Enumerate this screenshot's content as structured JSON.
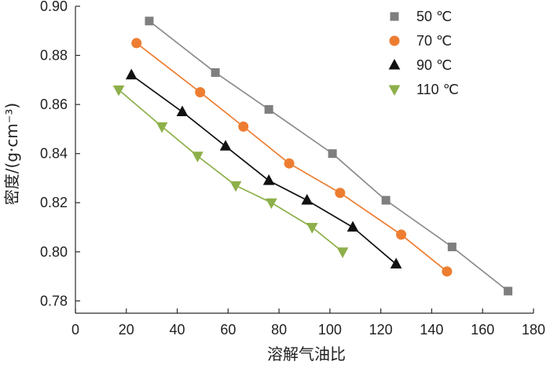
{
  "chart_data": {
    "type": "line",
    "title": "",
    "xlabel": "溶解气油比",
    "ylabel": "密度/(g·cm⁻³)",
    "xlim": [
      0,
      180
    ],
    "ylim": [
      0.775,
      0.9
    ],
    "x_ticks": [
      "0",
      "20",
      "40",
      "60",
      "80",
      "100",
      "120",
      "140",
      "160",
      "180"
    ],
    "y_ticks": [
      "0.78",
      "0.80",
      "0.82",
      "0.84",
      "0.86",
      "0.88",
      "0.90"
    ],
    "grid": false,
    "legend_position": "top-right",
    "series": [
      {
        "name": "50 ℃",
        "marker": "square",
        "marker_color": "#7f7f7f",
        "line_color": "#8c8c8c",
        "x": [
          29,
          55,
          76,
          101,
          122,
          148,
          170
        ],
        "y": [
          0.894,
          0.873,
          0.858,
          0.84,
          0.821,
          0.802,
          0.784
        ]
      },
      {
        "name": "70 ℃",
        "marker": "circle",
        "marker_color": "#ed7d31",
        "line_color": "#ed7d31",
        "x": [
          24,
          49,
          66,
          84,
          104,
          128,
          146
        ],
        "y": [
          0.885,
          0.865,
          0.851,
          0.836,
          0.824,
          0.807,
          0.792
        ]
      },
      {
        "name": "90 ℃",
        "marker": "triangle-up",
        "marker_color": "#111111",
        "line_color": "#111111",
        "x": [
          22,
          42,
          59,
          76,
          91,
          109,
          126
        ],
        "y": [
          0.872,
          0.857,
          0.843,
          0.829,
          0.821,
          0.81,
          0.795
        ]
      },
      {
        "name": "110 ℃",
        "marker": "triangle-down",
        "marker_color": "#8db04a",
        "line_color": "#8db04a",
        "x": [
          17,
          34,
          48,
          63,
          77,
          93,
          105
        ],
        "y": [
          0.866,
          0.851,
          0.839,
          0.827,
          0.82,
          0.81,
          0.8
        ]
      }
    ]
  }
}
